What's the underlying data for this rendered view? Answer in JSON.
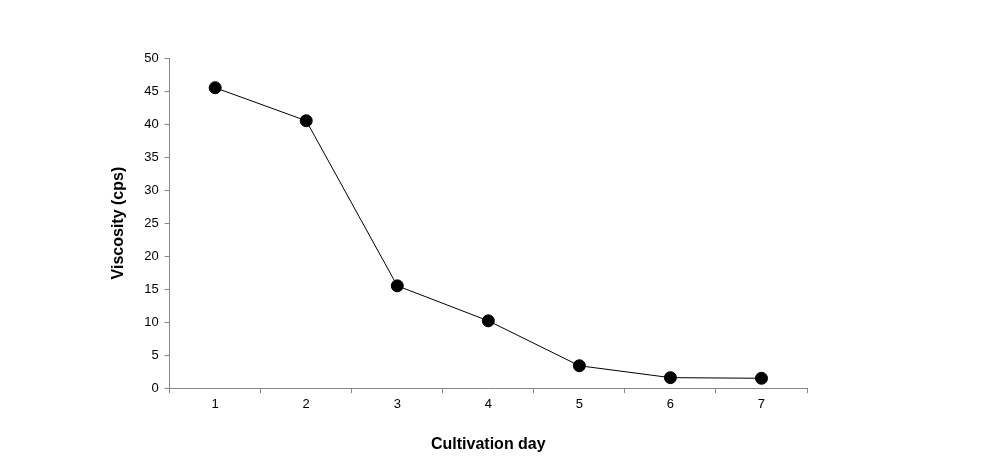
{
  "chart_data": {
    "type": "line",
    "x_label": "Cultivation day",
    "y_label": "Viscosity (cps)",
    "categories": [
      "1",
      "2",
      "3",
      "4",
      "5",
      "6",
      "7"
    ],
    "values": [
      45.5,
      40.5,
      15.5,
      10.2,
      3.4,
      1.6,
      1.5
    ],
    "color": "#000000",
    "marker": "circle",
    "line_style": "solid",
    "ylim": [
      0,
      50
    ],
    "yticks": [
      0,
      5,
      10,
      15,
      20,
      25,
      30,
      35,
      40,
      45,
      50
    ],
    "grid": false
  }
}
